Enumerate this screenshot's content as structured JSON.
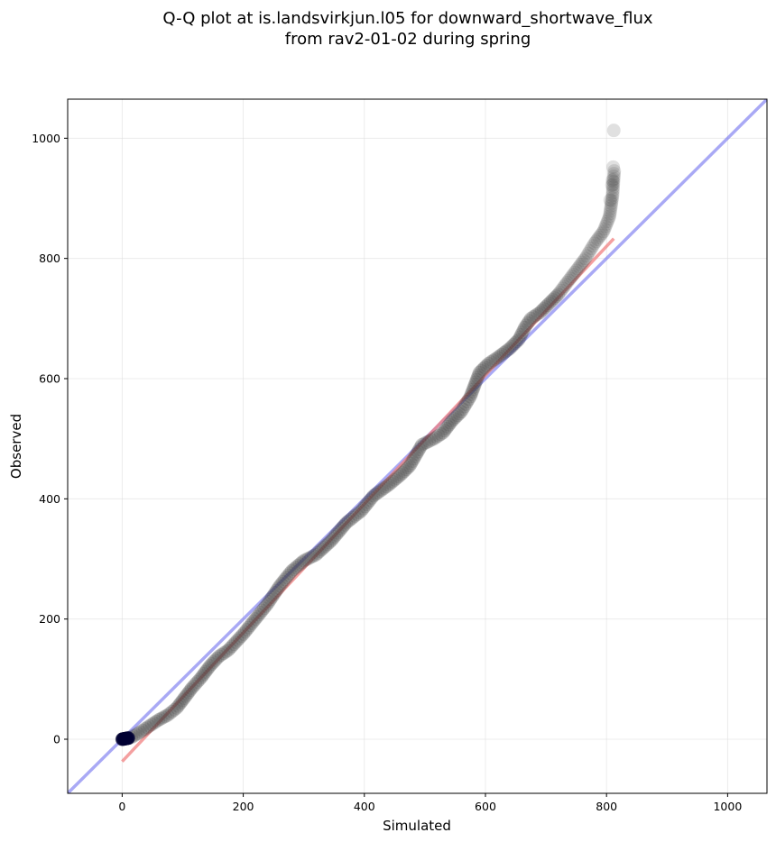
{
  "chart_data": {
    "type": "scatter",
    "title_lines": [
      "Q-Q plot at is.landsvirkjun.l05 for downward_shortwave_flux",
      "from rav2-01-02 during spring"
    ],
    "xlabel": "Simulated",
    "ylabel": "Observed",
    "xlim": [
      -90,
      1065
    ],
    "ylim": [
      -90,
      1065
    ],
    "xticks": [
      0,
      200,
      400,
      600,
      800,
      1000
    ],
    "yticks": [
      0,
      200,
      400,
      600,
      800,
      1000
    ],
    "grid": true,
    "colors": {
      "points": "#3c3c3c",
      "identity_line": "#6f6fee",
      "fit_line": "#f08080",
      "low_cluster": "#000033"
    },
    "identity_line": {
      "x": [
        -90,
        1065
      ],
      "y": [
        -90,
        1065
      ]
    },
    "fit_line": {
      "x": [
        0,
        812
      ],
      "y": [
        -37,
        833
      ]
    },
    "quantile_curve": {
      "x": [
        0,
        15,
        30,
        45,
        60,
        75,
        90,
        100,
        115,
        130,
        145,
        160,
        175,
        200,
        220,
        240,
        260,
        280,
        300,
        320,
        345,
        370,
        395,
        415,
        440,
        460,
        475,
        495,
        515,
        530,
        545,
        560,
        575,
        590,
        605,
        620,
        640,
        655,
        665,
        675,
        690,
        705,
        720,
        735,
        750,
        765,
        780,
        795,
        805,
        810,
        813
      ],
      "y": [
        0,
        3,
        12,
        22,
        32,
        40,
        52,
        65,
        85,
        102,
        122,
        138,
        148,
        175,
        200,
        225,
        255,
        280,
        297,
        307,
        330,
        360,
        380,
        405,
        423,
        440,
        455,
        490,
        500,
        510,
        530,
        545,
        570,
        610,
        625,
        635,
        650,
        665,
        685,
        700,
        710,
        725,
        740,
        760,
        780,
        800,
        825,
        845,
        870,
        905,
        950
      ]
    },
    "outlier_points": [
      {
        "x": 812,
        "y": 1013
      },
      {
        "x": 811,
        "y": 952
      },
      {
        "x": 810,
        "y": 930
      },
      {
        "x": 809,
        "y": 922
      },
      {
        "x": 806,
        "y": 897
      }
    ]
  }
}
